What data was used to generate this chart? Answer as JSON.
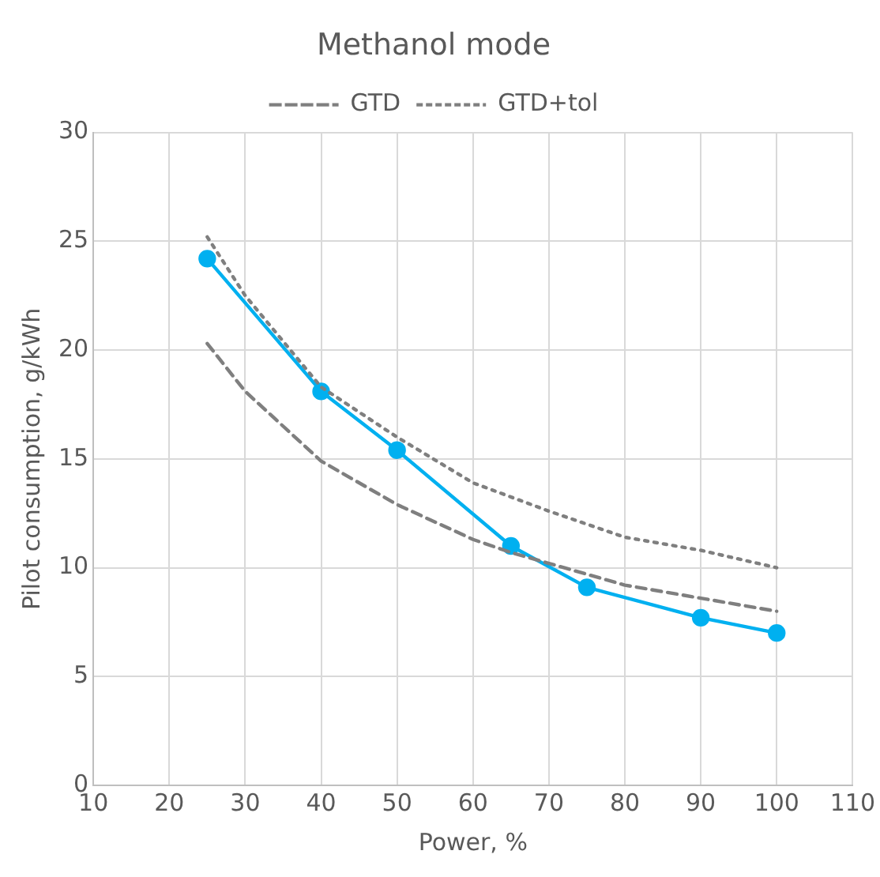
{
  "chart_data": {
    "type": "line",
    "title": "Methanol mode",
    "xlabel": "Power, %",
    "ylabel": "Pilot consumption, g/kWh",
    "xlim": [
      10,
      110
    ],
    "xticks": [
      10,
      20,
      30,
      40,
      50,
      60,
      70,
      80,
      90,
      100,
      110
    ],
    "ylim": [
      0,
      30
    ],
    "yticks": [
      0,
      5,
      10,
      15,
      20,
      25,
      30
    ],
    "grid": true,
    "legend": "top",
    "series": [
      {
        "name": "GTD",
        "color": "#7f7f7f",
        "line_style": "dashed",
        "marker": "none",
        "x": [
          25,
          30,
          40,
          50,
          60,
          65,
          70,
          80,
          90,
          100
        ],
        "values": [
          20.3,
          18.1,
          14.9,
          12.9,
          11.3,
          10.7,
          10.2,
          9.2,
          8.6,
          8.0
        ]
      },
      {
        "name": "GTD+tol",
        "color": "#7f7f7f",
        "line_style": "dotted",
        "marker": "none",
        "x": [
          25,
          30,
          40,
          50,
          60,
          70,
          80,
          90,
          100
        ],
        "values": [
          25.2,
          22.5,
          18.3,
          16.0,
          13.9,
          12.6,
          11.4,
          10.8,
          10.0
        ]
      },
      {
        "color": "#00b0f0",
        "line_style": "solid",
        "marker": "circle",
        "x": [
          25,
          40,
          50,
          65,
          75,
          90,
          100
        ],
        "values": [
          24.2,
          18.1,
          15.4,
          11.0,
          9.1,
          7.7,
          7.0
        ]
      }
    ]
  }
}
